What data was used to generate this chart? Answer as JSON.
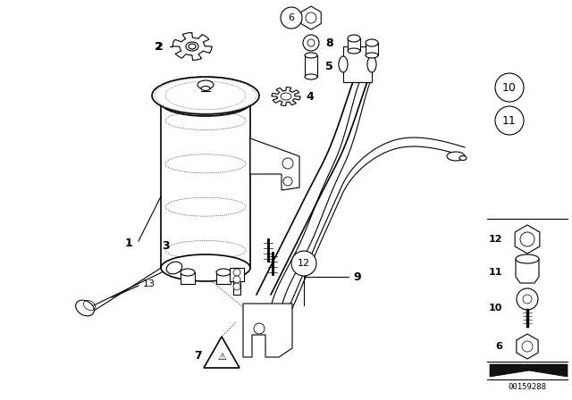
{
  "background_color": "#ffffff",
  "line_color": "#000000",
  "figure_width": 6.4,
  "figure_height": 4.48,
  "dpi": 100,
  "part_number": "00159288"
}
